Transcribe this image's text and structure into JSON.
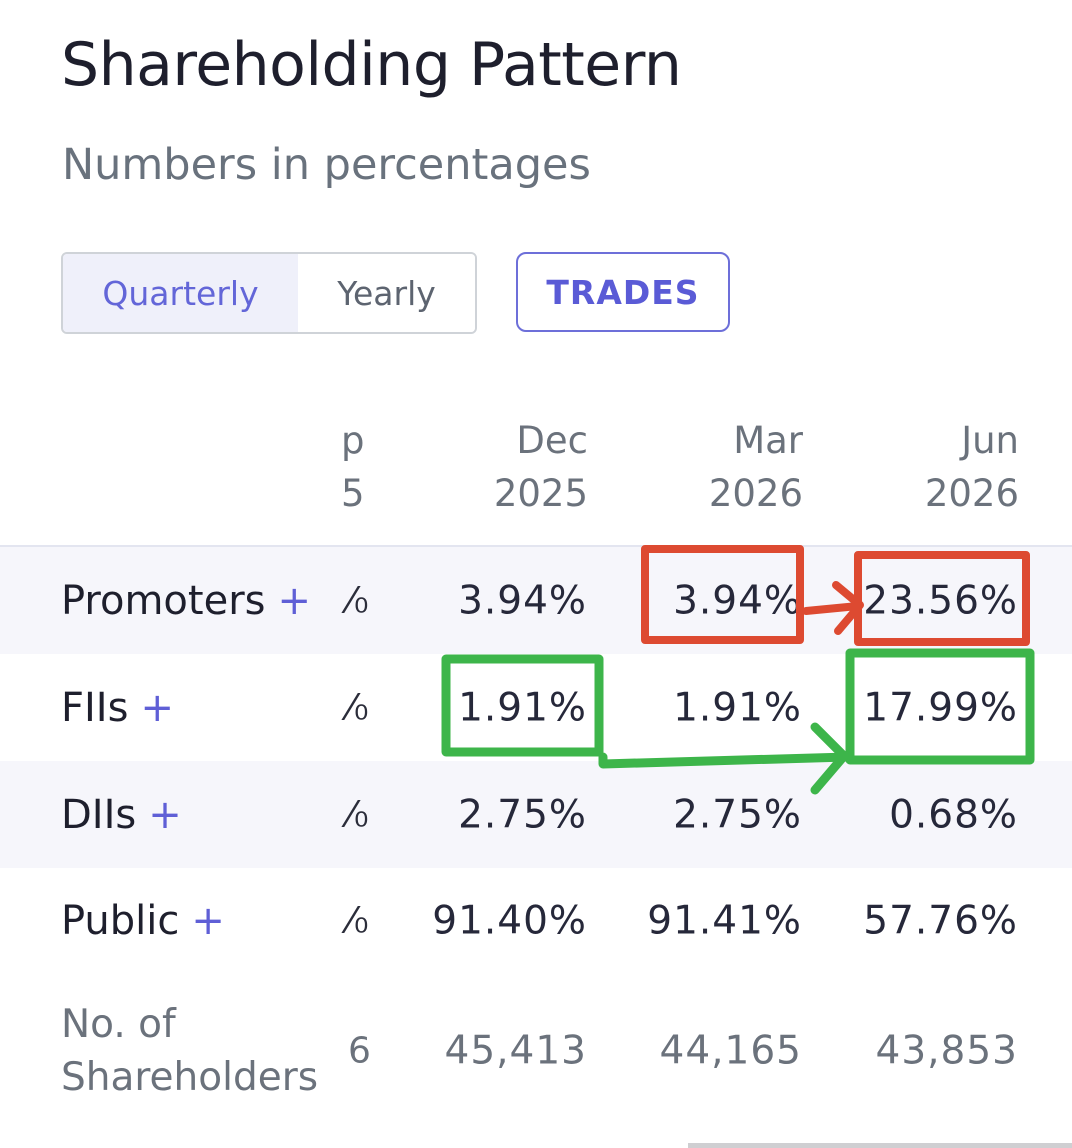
{
  "header": {
    "title": "Shareholding Pattern",
    "subtitle": "Numbers in percentages"
  },
  "controls": {
    "period_options": [
      "Quarterly",
      "Yearly"
    ],
    "selected_period": "Quarterly",
    "trades_label": "TRADES"
  },
  "table": {
    "columns": [
      {
        "month": "p",
        "year": "5"
      },
      {
        "month": "Dec",
        "year": "2025"
      },
      {
        "month": "Mar",
        "year": "2026"
      },
      {
        "month": "Jun",
        "year": "2026"
      }
    ],
    "rows": [
      {
        "label": "Promoters",
        "plus": "+",
        "cut": "⁄₀",
        "values": [
          "3.94%",
          "3.94%",
          "23.56%"
        ]
      },
      {
        "label": "FIIs",
        "plus": "+",
        "cut": "⁄₀",
        "values": [
          "1.91%",
          "1.91%",
          "17.99%"
        ]
      },
      {
        "label": "DIIs",
        "plus": "+",
        "cut": "⁄₀",
        "values": [
          "2.75%",
          "2.75%",
          "0.68%"
        ]
      },
      {
        "label": "Public",
        "plus": "+",
        "cut": "⁄₀",
        "values": [
          "91.40%",
          "91.41%",
          "57.76%"
        ]
      }
    ],
    "shareholders": {
      "label_line1": "No. of",
      "label_line2": "Shareholders",
      "cut": "6",
      "values": [
        "45,413",
        "44,165",
        "43,853"
      ]
    }
  },
  "annotations": {
    "red_color": "#dd4a31",
    "green_color": "#3db54a"
  }
}
